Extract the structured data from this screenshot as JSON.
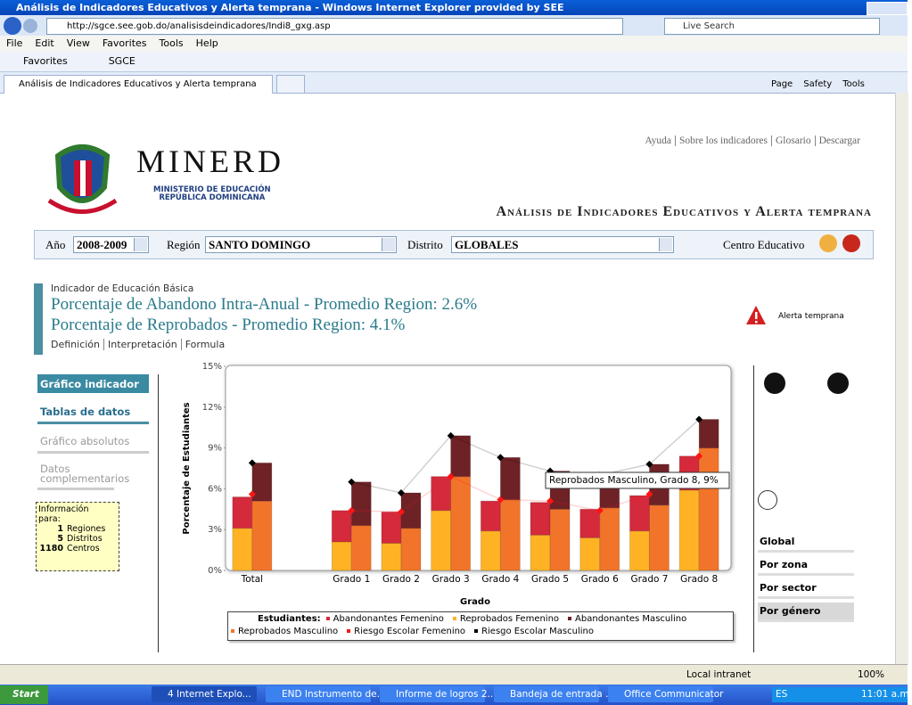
{
  "window": {
    "title": "Análisis de Indicadores Educativos y Alerta temprana - Windows Internet Explorer provided by SEE",
    "url": "http://sgce.see.gob.do/analisisdeindicadores/Indi8_gxg.asp",
    "search": "Live Search",
    "menu": [
      "File",
      "Edit",
      "View",
      "Favorites",
      "Tools",
      "Help"
    ],
    "favorites": "Favorites",
    "favorite_link": "SGCE",
    "tab": "Análisis de Indicadores Educativos y Alerta temprana",
    "toolbar": [
      "Page",
      "Safety",
      "Tools"
    ]
  },
  "header": {
    "links": [
      "Ayuda",
      "Sobre los indicadores",
      "Glosario",
      "Descargar"
    ],
    "logo": "MINERD",
    "ministry": [
      "MINISTERIO DE EDUCACIÓN",
      "REPÚBLICA DOMINICANA"
    ],
    "site_title": "Análisis de Indicadores Educativos y Alerta temprana"
  },
  "filters": {
    "year_label": "Año",
    "year": "2008-2009",
    "region_label": "Región",
    "region": "SANTO DOMINGO",
    "district_label": "Distrito",
    "district": "GLOBALES",
    "center_label": "Centro Educativo"
  },
  "indicator": {
    "level": "Indicador de Educación Básica",
    "lines": [
      "Porcentaje de Abandono Intra-Anual - Promedio Region: 2.6%",
      "Porcentaje de Reprobados - Promedio Region: 4.1%"
    ],
    "links": [
      "Definición",
      "Interpretación",
      "Formula"
    ],
    "alert": "Alerta temprana"
  },
  "nav": [
    "Gráfico indicador",
    "Tablas de datos",
    "Gráfico absolutos",
    "Datos complementarios"
  ],
  "info": {
    "title": "Información para:",
    "rows": [
      {
        "count": 1,
        "label": "Regiones"
      },
      {
        "count": 5,
        "label": "Distritos"
      },
      {
        "count": 1180,
        "label": "Centros"
      }
    ]
  },
  "views": [
    "Global",
    "Por zona",
    "Por sector",
    "Por género"
  ],
  "status": {
    "zone": "Local intranet",
    "zoom": "100%"
  },
  "taskbar": {
    "start": "Start",
    "items": [
      "4 Internet Explo...",
      "END Instrumento de...",
      "Informe de logros 2...",
      "Bandeja de entrada ...",
      "Office Communicator"
    ],
    "lang": "ES",
    "clock": "11:01 a.m."
  },
  "chart_data": {
    "type": "bar",
    "stacked": true,
    "y_label": "Porcentaje de Estudiantes",
    "x_label": "Grado",
    "legend_title": "Estudiantes:",
    "tooltip": "Reprobados Masculino, Grado 8, 9%",
    "categories": [
      "Total",
      null,
      "Grado 1",
      "Grado 2",
      "Grado 3",
      "Grado 4",
      "Grado 5",
      "Grado 6",
      "Grado 7",
      "Grado 8"
    ],
    "ylim": [
      0,
      15
    ],
    "yticks": [
      {
        "value": 0,
        "label": "0%"
      },
      {
        "value": 3,
        "label": "3%"
      },
      {
        "value": 6,
        "label": "6%"
      },
      {
        "value": 9,
        "label": "9%"
      },
      {
        "value": 12,
        "label": "12%"
      },
      {
        "value": 15,
        "label": "15%"
      }
    ],
    "series": [
      {
        "name": "Abandonantes Femenino",
        "type": "bar",
        "stack": "Femenino",
        "color": "#d42a3c",
        "values": [
          2.3,
          null,
          2.3,
          2.3,
          2.5,
          2.2,
          2.4,
          2.1,
          2.6,
          2.5
        ]
      },
      {
        "name": "Reprobados Femenino",
        "type": "bar",
        "stack": "Femenino",
        "color": "#ffb324",
        "values": [
          3.1,
          null,
          2.1,
          2.0,
          4.4,
          2.9,
          2.6,
          2.4,
          2.9,
          5.9
        ]
      },
      {
        "name": "Abandonantes Masculino",
        "type": "bar",
        "stack": "Masculino",
        "color": "#6e2226",
        "values": [
          2.8,
          null,
          3.2,
          2.6,
          3.0,
          3.1,
          2.8,
          2.4,
          3.0,
          2.1
        ]
      },
      {
        "name": "Reprobados Masculino",
        "type": "bar",
        "stack": "Masculino",
        "color": "#f2742a",
        "values": [
          5.1,
          null,
          3.3,
          3.1,
          6.9,
          5.2,
          4.5,
          4.6,
          4.8,
          9.0
        ]
      },
      {
        "name": "Riesgo Escolar Femenino",
        "type": "line",
        "color": "#ff1414",
        "values": [
          5.6,
          null,
          4.4,
          4.3,
          6.9,
          5.2,
          5.1,
          4.4,
          5.6,
          8.4
        ]
      },
      {
        "name": "Riesgo Escolar Masculino",
        "type": "line",
        "color": "#000000",
        "values": [
          7.9,
          null,
          6.5,
          5.7,
          9.9,
          8.3,
          7.3,
          7.0,
          7.8,
          11.1
        ]
      }
    ]
  }
}
